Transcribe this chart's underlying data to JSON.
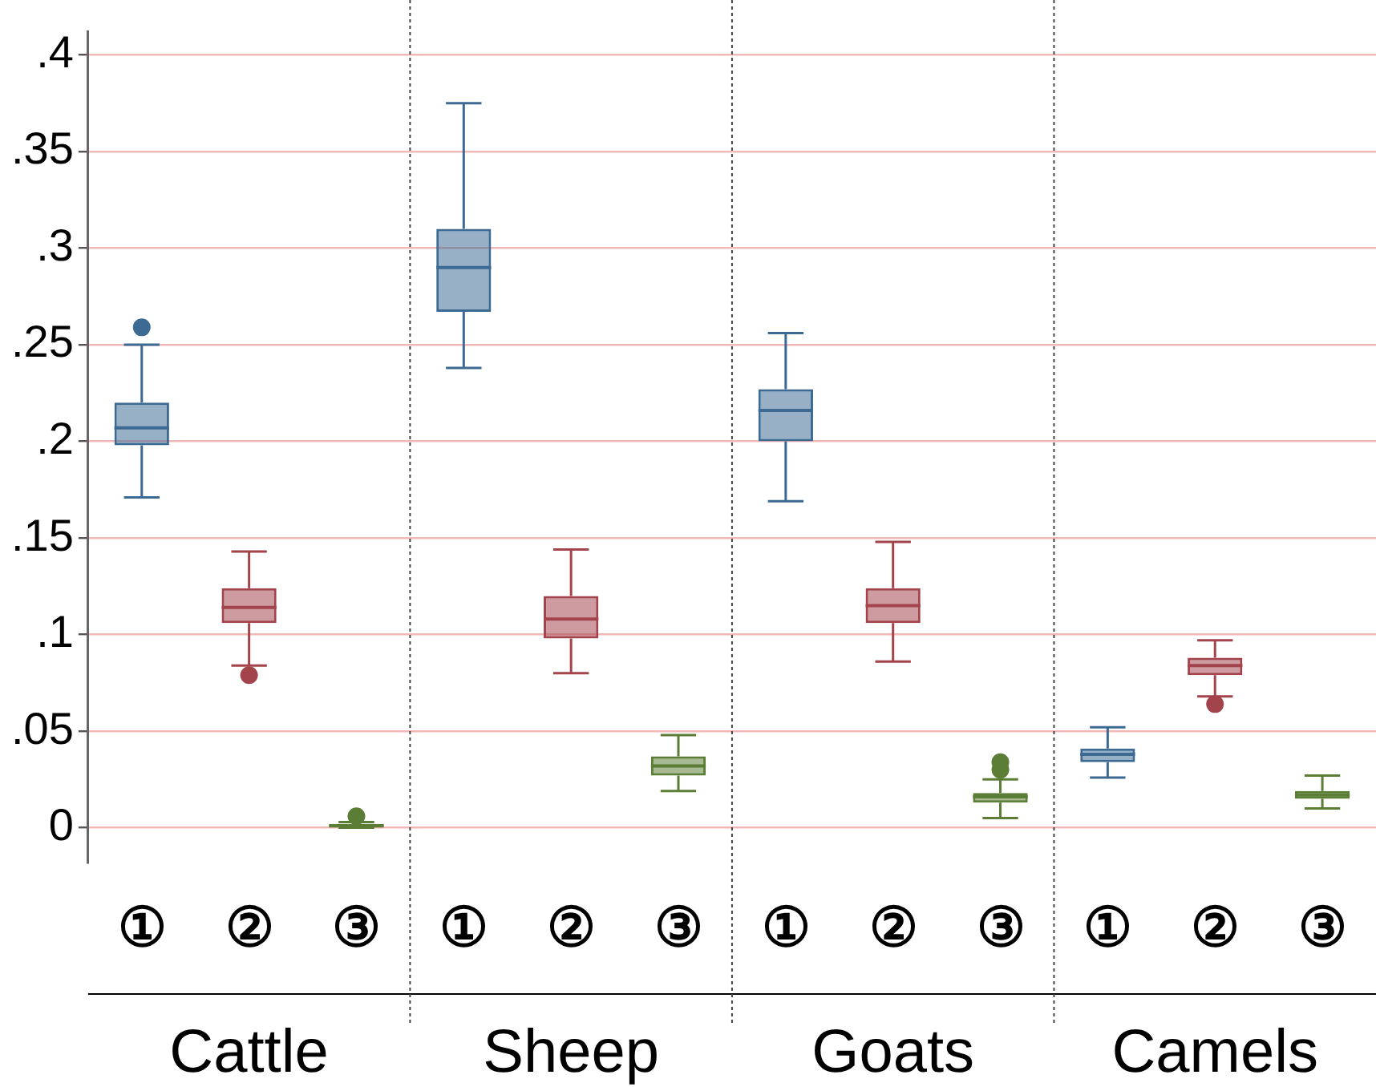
{
  "chart_data": {
    "type": "box",
    "categories": [
      "①",
      "②",
      "③",
      "①",
      "②",
      "③",
      "①",
      "②",
      "③",
      "①",
      "②",
      "③"
    ],
    "annotations": [
      "Cattle",
      "Sheep",
      "Goats",
      "Camels"
    ],
    "series": [
      {
        "colors": [
          "#3d6a93",
          "#a3434c",
          "#5b7d35",
          "#3d6a93",
          "#a3434c",
          "#5b7d35",
          "#3d6a93",
          "#a3434c",
          "#5b7d35",
          "#3d6a93",
          "#a3434c",
          "#5b7d35"
        ],
        "boxes": [
          {
            "low": 0.171,
            "q1": 0.198,
            "median": 0.207,
            "q3": 0.22,
            "high": 0.25,
            "outliers": [
              0.259
            ]
          },
          {
            "low": 0.084,
            "q1": 0.106,
            "median": 0.114,
            "q3": 0.124,
            "high": 0.143,
            "outliers": [
              0.079
            ]
          },
          {
            "low": 0,
            "q1": 0,
            "median": 0.001,
            "q3": 0.002,
            "high": 0.003,
            "outliers": [
              0.006
            ]
          },
          {
            "low": 0.238,
            "q1": 0.267,
            "median": 0.29,
            "q3": 0.31,
            "high": 0.375
          },
          {
            "low": 0.08,
            "q1": 0.098,
            "median": 0.108,
            "q3": 0.12,
            "high": 0.144
          },
          {
            "low": 0.019,
            "q1": 0.027,
            "median": 0.032,
            "q3": 0.037,
            "high": 0.048
          },
          {
            "low": 0.169,
            "q1": 0.2,
            "median": 0.216,
            "q3": 0.227,
            "high": 0.256
          },
          {
            "low": 0.086,
            "q1": 0.106,
            "median": 0.115,
            "q3": 0.124,
            "high": 0.148
          },
          {
            "low": 0.005,
            "q1": 0.013,
            "median": 0.016,
            "q3": 0.018,
            "high": 0.025,
            "outliers": [
              0.03,
              0.034
            ]
          },
          {
            "low": 0.026,
            "q1": 0.034,
            "median": 0.038,
            "q3": 0.041,
            "high": 0.052
          },
          {
            "low": 0.068,
            "q1": 0.079,
            "median": 0.084,
            "q3": 0.088,
            "high": 0.097,
            "outliers": [
              0.064
            ]
          },
          {
            "low": 0.01,
            "q1": 0.015,
            "median": 0.017,
            "q3": 0.019,
            "high": 0.027
          }
        ]
      }
    ],
    "ylim": [
      -0.018,
      0.412
    ],
    "yticks": [
      0,
      {
        "value": 0.05,
        "label": ".05"
      },
      {
        "value": 0.1,
        "label": ".1"
      },
      {
        "value": 0.15,
        "label": ".15"
      },
      {
        "value": 0.2,
        "label": ".2"
      },
      {
        "value": 0.25,
        "label": ".25"
      },
      {
        "value": 0.3,
        "label": ".3"
      },
      {
        "value": 0.35,
        "label": ".35"
      },
      {
        "value": 0.4,
        "label": ".4"
      }
    ],
    "grid": "y",
    "marker": "circle"
  }
}
